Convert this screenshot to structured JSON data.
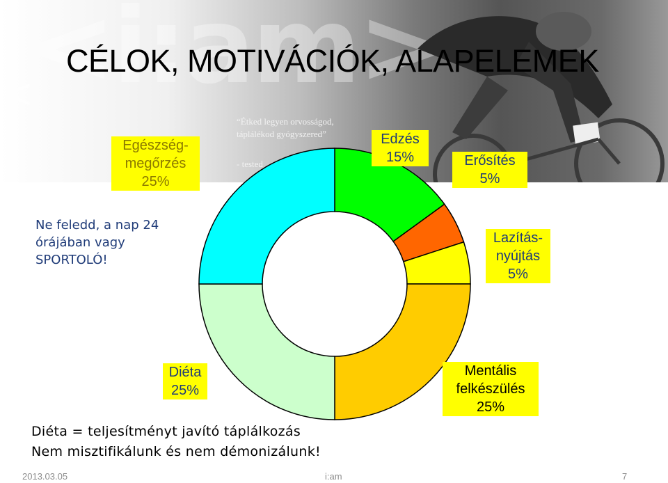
{
  "title": "CÉLOK, MOTIVÁCIÓK, ALAPELEMEK",
  "watermark": "<i:am>",
  "quote": {
    "line1": "“Étked legyen orvosságod,",
    "line2": "táplálékod gyógyszered”",
    "line3": "- tested"
  },
  "side_note": {
    "line1": "Ne feledd, a nap 24",
    "line2": "órájában vagy",
    "line3": "SPORTOLÓ!"
  },
  "bottom_text": {
    "line1": "Diéta = teljesítményt javító táplálkozás",
    "line2": "Nem misztifikálunk és nem démonizálunk!"
  },
  "footer": {
    "date": "2013.03.05",
    "center": "i:am",
    "page": "7"
  },
  "labels": {
    "egeszseg": {
      "l1": "Egészség-",
      "l2": "megőrzés",
      "l3": "25%"
    },
    "edzes": {
      "l1": "Edzés",
      "l2": "15%"
    },
    "erosites": {
      "l1": "Erősítés",
      "l2": "5%"
    },
    "lazitas": {
      "l1": "Lazítás-",
      "l2": "nyújtás",
      "l3": "5%"
    },
    "dieta": {
      "l1": "Diéta",
      "l2": "25%"
    },
    "mentalis": {
      "l1": "Mentális",
      "l2": "felkészülés",
      "l3": "25%"
    }
  },
  "chart_data": {
    "type": "pie",
    "subtype": "donut",
    "categories": [
      "Edzés",
      "Erősítés",
      "Lazítás-nyújtás",
      "Mentális felkészülés",
      "Diéta",
      "Egészségmegőrzés"
    ],
    "values": [
      15,
      5,
      5,
      25,
      25,
      25
    ],
    "unit": "%",
    "colors": [
      "#00ff00",
      "#ff6600",
      "#ffff00",
      "#ffcc00",
      "#ccffcc",
      "#00ffff"
    ],
    "start_angle_deg": 0,
    "direction": "clockwise"
  }
}
